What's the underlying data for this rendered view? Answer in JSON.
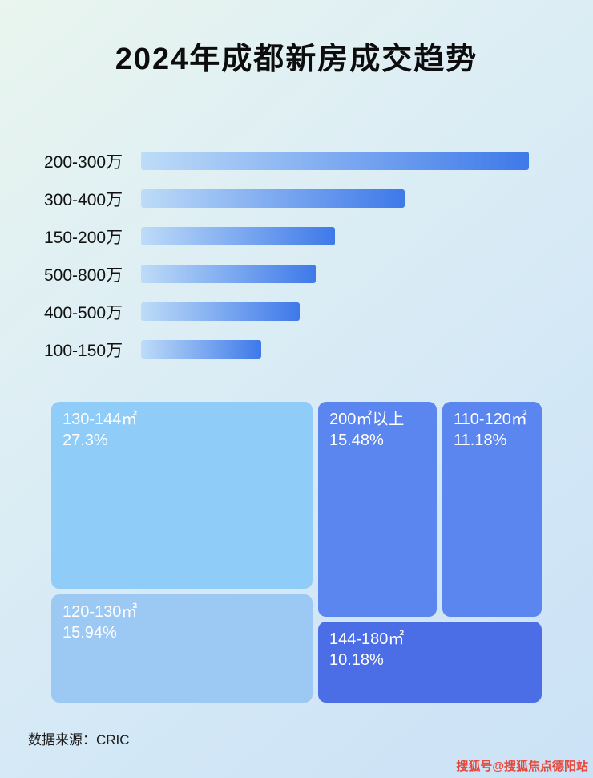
{
  "page": {
    "title": "2024年成都新房成交趋势",
    "source_label": "数据来源：CRIC",
    "watermark": "搜狐号@搜狐焦点德阳站"
  },
  "colors": {
    "bar_gradient_start": "#bedcf8",
    "bar_gradient_end": "#3e79e9",
    "background_start": "#e9f5ee",
    "background_end": "#cbe2f6",
    "watermark_red": "#e8473b"
  },
  "chart_data": [
    {
      "type": "bar",
      "orientation": "horizontal",
      "title": "2024年成都新房成交趋势",
      "categories": [
        "200-300万",
        "300-400万",
        "150-200万",
        "500-800万",
        "400-500万",
        "100-150万"
      ],
      "values": [
        100,
        68,
        50,
        45,
        41,
        31
      ],
      "value_note": "relative bar lengths (no numeric axis or data labels shown in image)",
      "xlabel": "",
      "ylabel": "",
      "grid": false,
      "legend": false
    },
    {
      "type": "treemap",
      "title": "",
      "items": [
        {
          "label": "130-144㎡",
          "value": 27.3,
          "value_label": "27.3%",
          "color": "#8fccf7"
        },
        {
          "label": "120-130㎡",
          "value": 15.94,
          "value_label": "15.94%",
          "color": "#9cc9f3"
        },
        {
          "label": "200㎡以上",
          "value": 15.48,
          "value_label": "15.48%",
          "color": "#5b86ef"
        },
        {
          "label": "110-120㎡",
          "value": 11.18,
          "value_label": "11.18%",
          "color": "#5b86ef"
        },
        {
          "label": "144-180㎡",
          "value": 10.18,
          "value_label": "10.18%",
          "color": "#4b6ee6"
        }
      ]
    }
  ]
}
